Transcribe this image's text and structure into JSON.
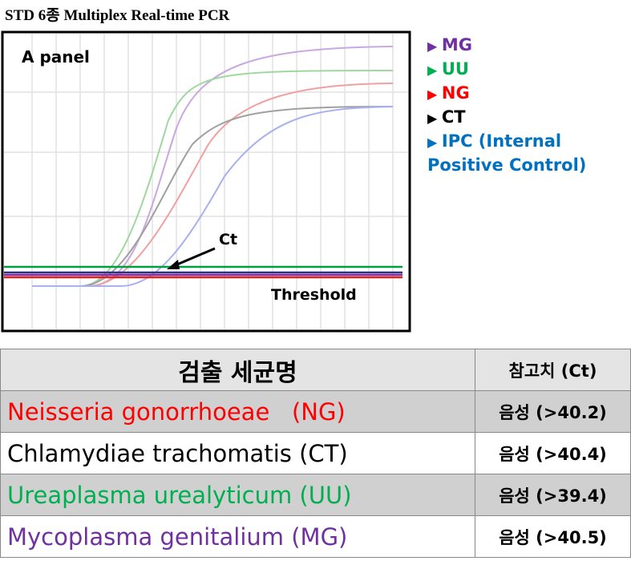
{
  "title": "STD 6종 Multiplex Real-time PCR",
  "panel": {
    "label": "A panel",
    "ct_label": "Ct",
    "threshold_label": "Threshold"
  },
  "legend": [
    {
      "name": "MG",
      "color": "#7030a0"
    },
    {
      "name": "UU",
      "color": "#00b050"
    },
    {
      "name": "NG",
      "color": "#ff0000"
    },
    {
      "name": "CT",
      "color": "#000000"
    },
    {
      "name": "IPC (Internal Positive Control)",
      "color": "#0070c0"
    }
  ],
  "table": {
    "header": [
      "검출 세균명",
      "참고치 (Ct)"
    ],
    "rows": [
      {
        "cells": [
          "Neisseria gonorrhoeae   (NG)",
          "음성 (>40.2)"
        ],
        "color": "#ff0000"
      },
      {
        "cells": [
          "Chlamydiae trachomatis (CT)",
          "음성 (>40.4)"
        ],
        "color": "#000000"
      },
      {
        "cells": [
          "Ureaplasma urealyticum (UU)",
          "음성 (>39.4)"
        ],
        "color": "#00b050"
      },
      {
        "cells": [
          "Mycoplasma genitalium (MG)",
          "음성 (>40.5)"
        ],
        "color": "#7030a0"
      }
    ]
  }
}
